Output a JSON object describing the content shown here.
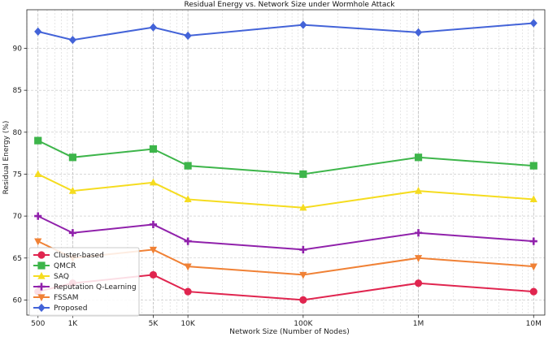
{
  "chart_data": {
    "type": "line",
    "title": "Residual Energy vs. Network Size under Wormhole Attack",
    "xlabel": "Network Size (Number of Nodes)",
    "ylabel": "Residual Energy (%)",
    "x_scale": "log",
    "x": [
      500,
      1000,
      5000,
      10000,
      100000,
      1000000,
      10000000
    ],
    "x_tick_labels": [
      "500",
      "1K",
      "5K",
      "10K",
      "100K",
      "1M",
      "10M"
    ],
    "xlim": [
      400,
      12500000
    ],
    "ylim": [
      58.2,
      94.6
    ],
    "y_ticks": [
      60,
      65,
      70,
      75,
      80,
      85,
      90
    ],
    "grid": true,
    "legend_position": "bottom-left",
    "series": [
      {
        "name": "Cluster-based",
        "color": "#e0254f",
        "marker": "circle",
        "values": [
          61,
          62,
          63,
          61,
          60,
          62,
          61
        ]
      },
      {
        "name": "QMCR",
        "color": "#3db54a",
        "marker": "square",
        "values": [
          79,
          77,
          78,
          76,
          75,
          77,
          76
        ]
      },
      {
        "name": "SAQ",
        "color": "#f5dc1f",
        "marker": "triangle-up",
        "values": [
          75,
          73,
          74,
          72,
          71,
          73,
          72
        ]
      },
      {
        "name": "Reputation Q-Learning",
        "color": "#9021ab",
        "marker": "plus",
        "values": [
          70,
          68,
          69,
          67,
          66,
          68,
          67
        ]
      },
      {
        "name": "FSSAM",
        "color": "#f08135",
        "marker": "triangle-down",
        "values": [
          67,
          65,
          66,
          64,
          63,
          65,
          64
        ]
      },
      {
        "name": "Proposed",
        "color": "#4363d8",
        "marker": "diamond",
        "values": [
          92,
          91,
          92.5,
          91.5,
          92.8,
          91.9,
          93
        ]
      }
    ]
  }
}
